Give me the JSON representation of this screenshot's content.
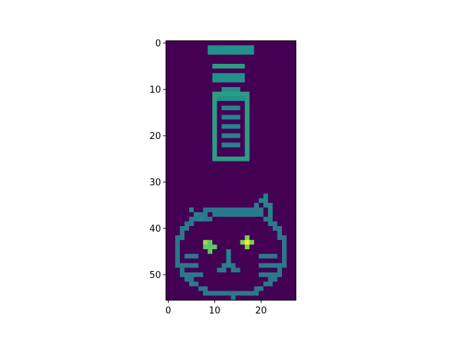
{
  "chart_data": {
    "type": "heatmap",
    "colormap": "viridis",
    "rows": 56,
    "cols": 28,
    "value_range": [
      0,
      1
    ],
    "xlim": [
      -0.5,
      27.5
    ],
    "ylim": [
      55.5,
      -0.5
    ],
    "x_ticks": [
      0,
      10,
      20
    ],
    "y_ticks": [
      0,
      10,
      20,
      30,
      40,
      50
    ],
    "x_tick_labels": [
      "0",
      "10",
      "20"
    ],
    "y_tick_labels": [
      "0",
      "10",
      "20",
      "30",
      "40",
      "50"
    ],
    "grid": false,
    "strokes": [
      {
        "shape": "rect",
        "r0": 1,
        "c0": 9,
        "r1": 2,
        "c1": 18,
        "v": 0.5
      },
      {
        "shape": "rect",
        "r0": 5,
        "c0": 10,
        "r1": 5,
        "c1": 16,
        "v": 0.55
      },
      {
        "shape": "rect",
        "r0": 7,
        "c0": 10,
        "r1": 8,
        "c1": 16,
        "v": 0.5
      },
      {
        "shape": "rect",
        "r0": 10,
        "c0": 12,
        "r1": 11,
        "c1": 15,
        "v": 0.5
      },
      {
        "shape": "outline",
        "r0": 11,
        "c0": 10,
        "r1": 25,
        "c1": 17,
        "v": 0.55
      },
      {
        "shape": "rect",
        "r0": 12,
        "c0": 10,
        "r1": 12,
        "c1": 17,
        "v": 0.5
      },
      {
        "shape": "rect",
        "r0": 14,
        "c0": 12,
        "r1": 14,
        "c1": 15,
        "v": 0.45
      },
      {
        "shape": "rect",
        "r0": 16,
        "c0": 12,
        "r1": 16,
        "c1": 15,
        "v": 0.45
      },
      {
        "shape": "rect",
        "r0": 18,
        "c0": 12,
        "r1": 18,
        "c1": 15,
        "v": 0.45
      },
      {
        "shape": "rect",
        "r0": 20,
        "c0": 12,
        "r1": 20,
        "c1": 15,
        "v": 0.45
      },
      {
        "shape": "rect",
        "r0": 22,
        "c0": 12,
        "r1": 22,
        "c1": 15,
        "v": 0.45
      },
      {
        "shape": "ellipse",
        "cr": 45,
        "cc": 13.5,
        "rr": 9.5,
        "rc": 11.5,
        "v": 0.4
      },
      {
        "shape": "line",
        "r0": 36,
        "c0": 5,
        "r1": 38,
        "c1": 7,
        "v": 0.45
      },
      {
        "shape": "line",
        "r0": 35,
        "c0": 19,
        "r1": 33,
        "c1": 21,
        "v": 0.45
      },
      {
        "shape": "line",
        "r0": 33,
        "c0": 21,
        "r1": 37,
        "c1": 22,
        "v": 0.45
      },
      {
        "shape": "line",
        "r0": 38,
        "c0": 8,
        "r1": 37,
        "c1": 11,
        "v": 0.4
      },
      {
        "shape": "line",
        "r0": 37,
        "c0": 11,
        "r1": 37,
        "c1": 18,
        "v": 0.4
      },
      {
        "shape": "line",
        "r0": 37,
        "c0": 18,
        "r1": 36,
        "c1": 20,
        "v": 0.4
      },
      {
        "shape": "blob",
        "cr": 43.5,
        "cc": 8.5,
        "rad": 1.3,
        "v": 0.75
      },
      {
        "shape": "blob",
        "cr": 43,
        "cc": 17,
        "rad": 1.2,
        "v": 0.8
      },
      {
        "shape": "point",
        "r": 43,
        "c": 17,
        "v": 1.0
      },
      {
        "shape": "point",
        "r": 43,
        "c": 8,
        "v": 0.85
      },
      {
        "shape": "rect",
        "r0": 45,
        "c0": 13,
        "r1": 48,
        "c1": 13,
        "v": 0.45
      },
      {
        "shape": "line",
        "r0": 48,
        "c0": 13,
        "r1": 49,
        "c1": 11,
        "v": 0.4
      },
      {
        "shape": "line",
        "r0": 48,
        "c0": 13,
        "r1": 49,
        "c1": 15,
        "v": 0.4
      },
      {
        "shape": "rect",
        "r0": 46,
        "c0": 4,
        "r1": 46,
        "c1": 6,
        "v": 0.4
      },
      {
        "shape": "rect",
        "r0": 48,
        "c0": 4,
        "r1": 48,
        "c1": 6,
        "v": 0.4
      },
      {
        "shape": "rect",
        "r0": 50,
        "c0": 5,
        "r1": 50,
        "c1": 7,
        "v": 0.4
      },
      {
        "shape": "rect",
        "r0": 46,
        "c0": 20,
        "r1": 46,
        "c1": 23,
        "v": 0.4
      },
      {
        "shape": "rect",
        "r0": 48,
        "c0": 20,
        "r1": 48,
        "c1": 23,
        "v": 0.4
      },
      {
        "shape": "rect",
        "r0": 50,
        "c0": 20,
        "r1": 50,
        "c1": 22,
        "v": 0.4
      }
    ]
  }
}
